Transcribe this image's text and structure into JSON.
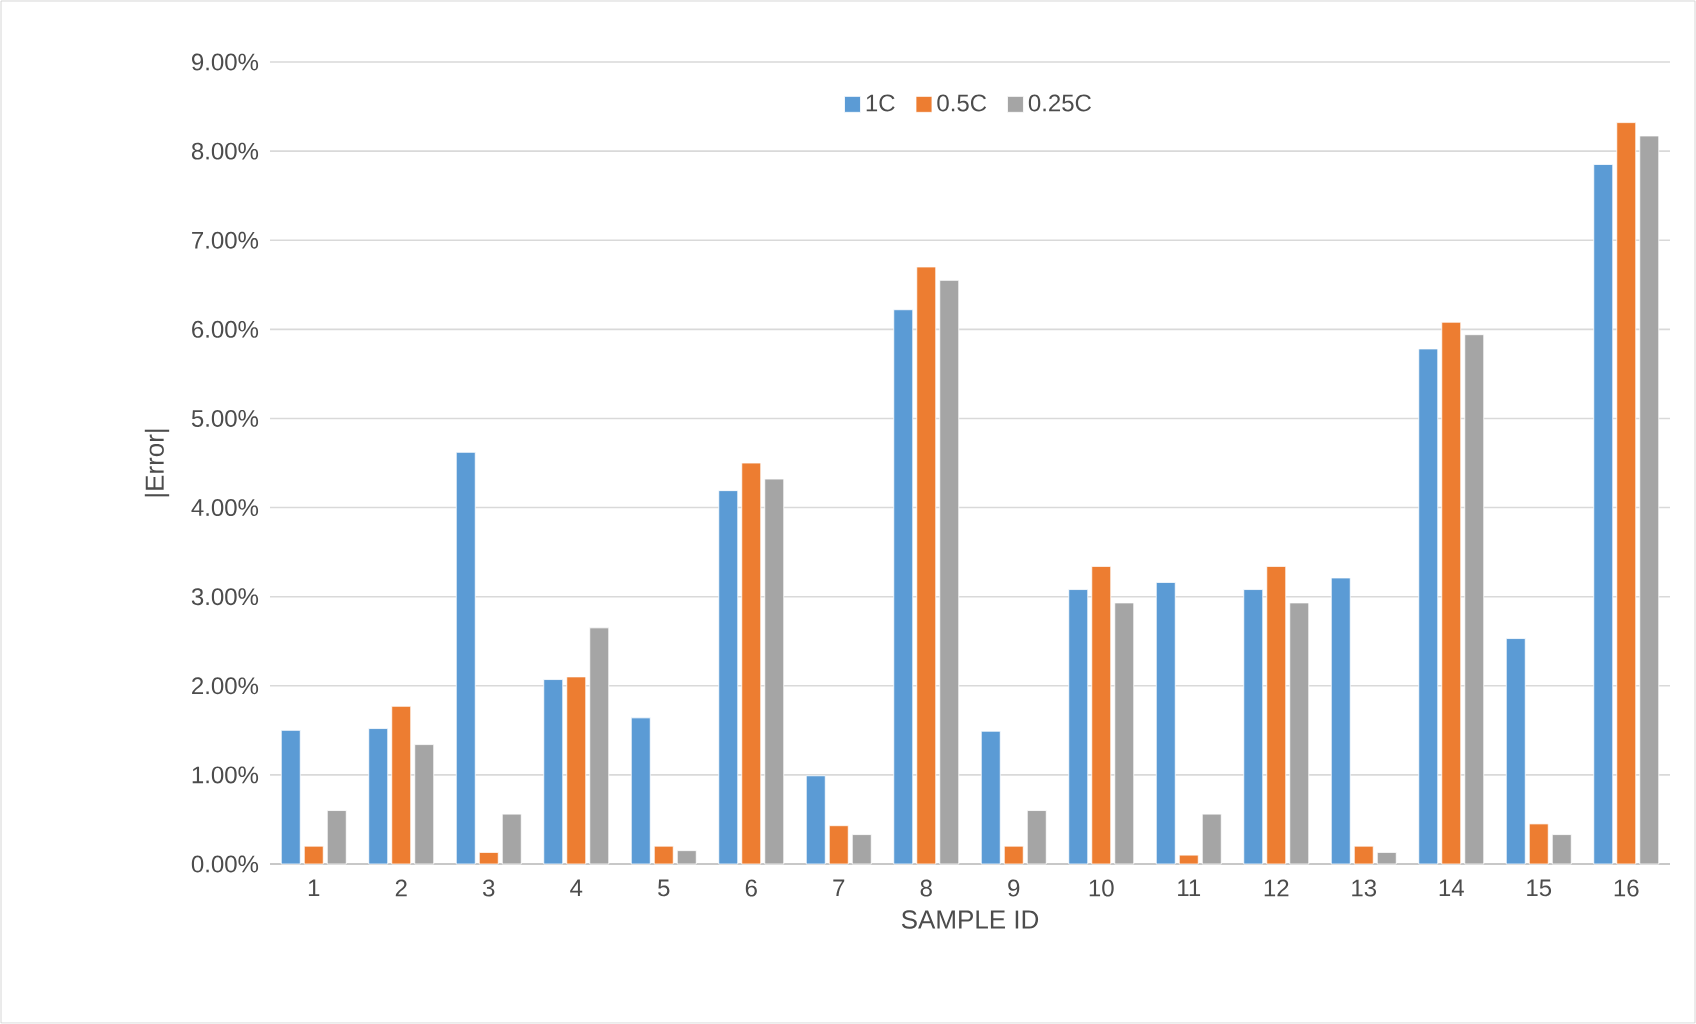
{
  "chart_data": {
    "type": "bar",
    "xlabel": "SAMPLE ID",
    "ylabel": "|Error|",
    "categories": [
      "1",
      "2",
      "3",
      "4",
      "5",
      "6",
      "7",
      "8",
      "9",
      "10",
      "11",
      "12",
      "13",
      "14",
      "15",
      "16"
    ],
    "series": [
      {
        "name": "1C",
        "color": "#5b9bd5",
        "values": [
          1.5,
          1.52,
          4.62,
          2.07,
          1.64,
          4.19,
          0.99,
          6.22,
          1.49,
          3.08,
          3.16,
          3.08,
          3.21,
          5.78,
          2.53,
          7.85
        ]
      },
      {
        "name": "0.5C",
        "color": "#ed7d31",
        "values": [
          0.2,
          1.77,
          0.13,
          2.1,
          0.2,
          4.5,
          0.43,
          6.7,
          0.2,
          3.34,
          0.1,
          3.34,
          0.2,
          6.08,
          0.45,
          8.32
        ]
      },
      {
        "name": "0.25C",
        "color": "#a5a5a5",
        "values": [
          0.6,
          1.34,
          0.56,
          2.65,
          0.15,
          4.32,
          0.33,
          6.55,
          0.6,
          2.93,
          0.56,
          2.93,
          0.13,
          5.94,
          0.33,
          8.17
        ]
      }
    ],
    "ylim": [
      0,
      9
    ],
    "yticks": [
      {
        "value": 0,
        "label": "0.00%"
      },
      {
        "value": 1,
        "label": "1.00%"
      },
      {
        "value": 2,
        "label": "2.00%"
      },
      {
        "value": 3,
        "label": "3.00%"
      },
      {
        "value": 4,
        "label": "4.00%"
      },
      {
        "value": 5,
        "label": "5.00%"
      },
      {
        "value": 6,
        "label": "6.00%"
      },
      {
        "value": 7,
        "label": "7.00%"
      },
      {
        "value": 8,
        "label": "8.00%"
      },
      {
        "value": 9,
        "label": "9.00%"
      }
    ],
    "grid": "y",
    "legend": "top"
  }
}
